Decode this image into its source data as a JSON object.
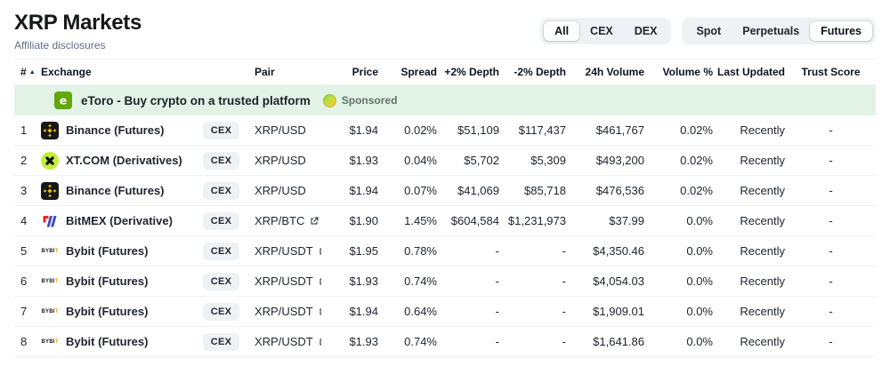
{
  "page": {
    "title": "XRP Markets",
    "subtitle": "Affiliate disclosures"
  },
  "filters": {
    "market_type": {
      "options": [
        "All",
        "CEX",
        "DEX"
      ],
      "selected": "All"
    },
    "category": {
      "options": [
        "Spot",
        "Perpetuals",
        "Futures"
      ],
      "selected": "Futures"
    }
  },
  "sponsored": {
    "logo": "etoro",
    "text": "eToro - Buy crypto on a trusted platform",
    "label": "Sponsored"
  },
  "table": {
    "sort_column": "#",
    "sort_direction": "asc",
    "sort_indicator": "▲",
    "columns": [
      "#",
      "Exchange",
      "",
      "Pair",
      "Price",
      "Spread",
      "+2% Depth",
      "-2% Depth",
      "24h Volume",
      "Volume %",
      "Last Updated",
      "Trust Score"
    ],
    "rows": [
      {
        "rank": "1",
        "exchange": "Binance (Futures)",
        "exchange_icon": "binance",
        "type": "CEX",
        "pair": "XRP/USD",
        "pair_external": false,
        "price": "$1.94",
        "spread": "0.02%",
        "depth_plus": "$51,109",
        "depth_minus": "$117,437",
        "volume_24h": "$461,767",
        "volume_pct": "0.02%",
        "last_updated": "Recently",
        "trust_score": "-"
      },
      {
        "rank": "2",
        "exchange": "XT.COM (Derivatives)",
        "exchange_icon": "xt",
        "type": "CEX",
        "pair": "XRP/USD",
        "pair_external": false,
        "price": "$1.93",
        "spread": "0.04%",
        "depth_plus": "$5,702",
        "depth_minus": "$5,309",
        "volume_24h": "$493,200",
        "volume_pct": "0.02%",
        "last_updated": "Recently",
        "trust_score": "-"
      },
      {
        "rank": "3",
        "exchange": "Binance (Futures)",
        "exchange_icon": "binance",
        "type": "CEX",
        "pair": "XRP/USD",
        "pair_external": false,
        "price": "$1.94",
        "spread": "0.07%",
        "depth_plus": "$41,069",
        "depth_minus": "$85,718",
        "volume_24h": "$476,536",
        "volume_pct": "0.02%",
        "last_updated": "Recently",
        "trust_score": "-"
      },
      {
        "rank": "4",
        "exchange": "BitMEX (Derivative)",
        "exchange_icon": "bitmex",
        "type": "CEX",
        "pair": "XRP/BTC",
        "pair_external": true,
        "price": "$1.90",
        "spread": "1.45%",
        "depth_plus": "$604,584",
        "depth_minus": "$1,231,973",
        "volume_24h": "$37.99",
        "volume_pct": "0.0%",
        "last_updated": "Recently",
        "trust_score": "-"
      },
      {
        "rank": "5",
        "exchange": "Bybit (Futures)",
        "exchange_icon": "bybit",
        "type": "CEX",
        "pair": "XRP/USDT",
        "pair_external": true,
        "price": "$1.95",
        "spread": "0.78%",
        "depth_plus": "-",
        "depth_minus": "-",
        "volume_24h": "$4,350.46",
        "volume_pct": "0.0%",
        "last_updated": "Recently",
        "trust_score": "-"
      },
      {
        "rank": "6",
        "exchange": "Bybit (Futures)",
        "exchange_icon": "bybit",
        "type": "CEX",
        "pair": "XRP/USDT",
        "pair_external": true,
        "price": "$1.93",
        "spread": "0.74%",
        "depth_plus": "-",
        "depth_minus": "-",
        "volume_24h": "$4,054.03",
        "volume_pct": "0.0%",
        "last_updated": "Recently",
        "trust_score": "-"
      },
      {
        "rank": "7",
        "exchange": "Bybit (Futures)",
        "exchange_icon": "bybit",
        "type": "CEX",
        "pair": "XRP/USDT",
        "pair_external": true,
        "price": "$1.94",
        "spread": "0.64%",
        "depth_plus": "-",
        "depth_minus": "-",
        "volume_24h": "$1,909.01",
        "volume_pct": "0.0%",
        "last_updated": "Recently",
        "trust_score": "-"
      },
      {
        "rank": "8",
        "exchange": "Bybit (Futures)",
        "exchange_icon": "bybit",
        "type": "CEX",
        "pair": "XRP/USDT",
        "pair_external": true,
        "price": "$1.93",
        "spread": "0.74%",
        "depth_plus": "-",
        "depth_minus": "-",
        "volume_24h": "$1,641.86",
        "volume_pct": "0.0%",
        "last_updated": "Recently",
        "trust_score": "-"
      }
    ]
  },
  "colors": {
    "text_dark": "#222531",
    "text_gray": "#616e85",
    "row_border": "#eff2f5",
    "badge_bg": "#eff2f5",
    "sponsored_band_bg": "#e2f3e6",
    "binance_yellow": "#f0b90b",
    "xt_lime": "#c3ee3d",
    "etoro_green": "#64a70b",
    "bitmex_red": "#e4282d",
    "bitmex_blue": "#3b4ac2",
    "bybit_yellow": "#f7a600"
  }
}
